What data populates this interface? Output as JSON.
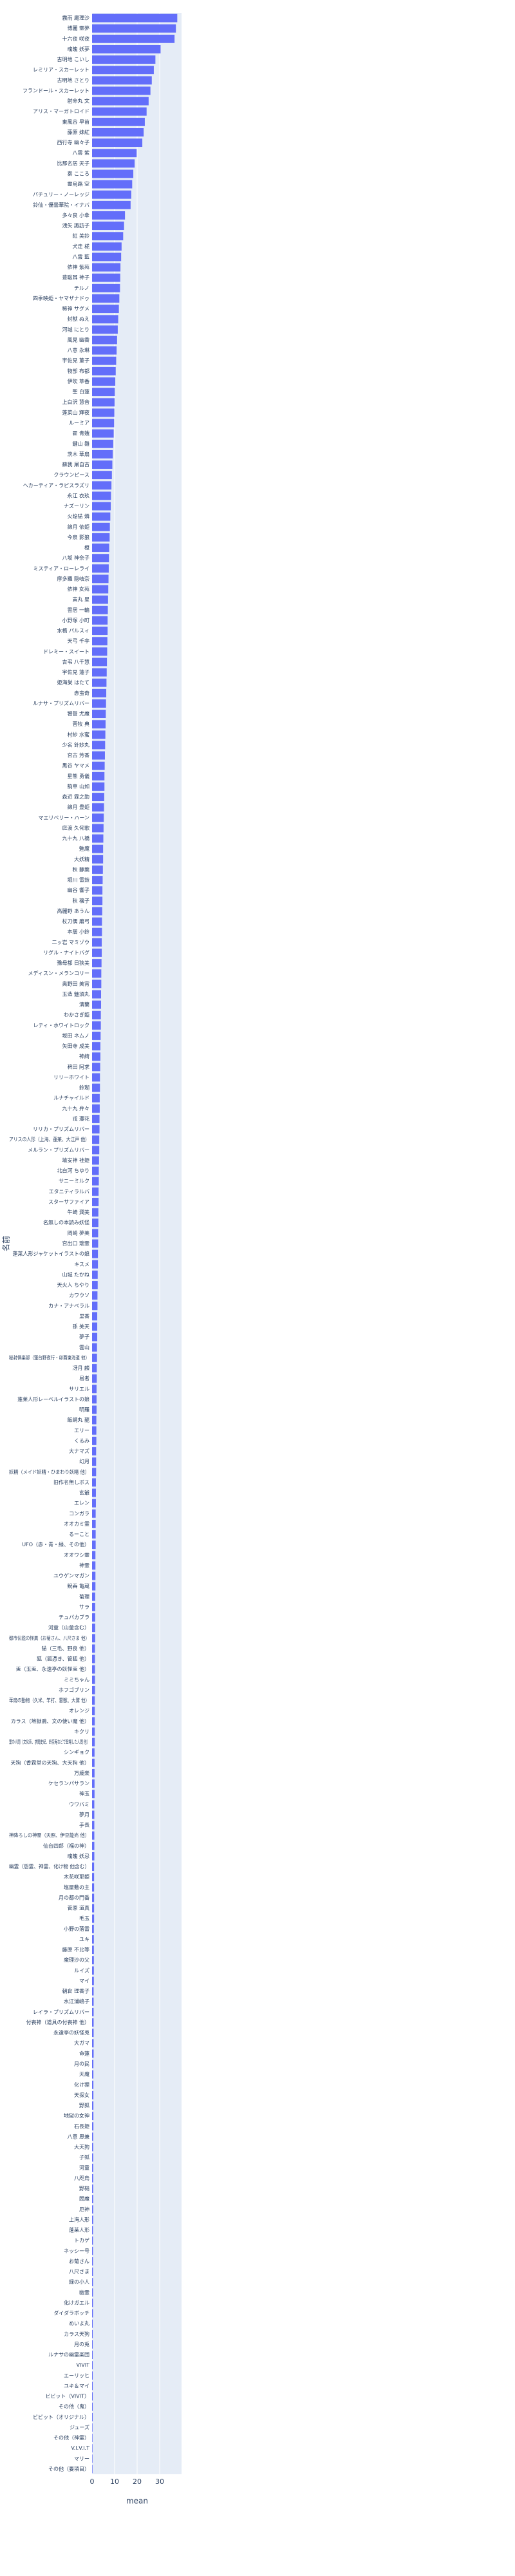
{
  "chart_data": {
    "type": "bar",
    "orientation": "horizontal",
    "x_label": "mean",
    "y_label": "名前",
    "color": "#636efa",
    "grid": true,
    "xlim": [
      0,
      39.7
    ],
    "xticks": [
      0,
      10,
      20,
      30
    ],
    "categories": [
      "霧雨 魔理沙",
      "博麗 霊夢",
      "十六夜 咲夜",
      "魂魄 妖夢",
      "古明地 こいし",
      "レミリア・スカーレット",
      "古明地 さとり",
      "フランドール・スカーレット",
      "射命丸 文",
      "アリス・マーガトロイド",
      "東風谷 早苗",
      "藤原 妹紅",
      "西行寺 幽々子",
      "八雲 紫",
      "比那名居 天子",
      "秦 こころ",
      "霊烏路 空",
      "パチュリー・ノーレッジ",
      "鈴仙・優曇華院・イナバ",
      "多々良 小傘",
      "洩矢 諏訪子",
      "紅 美鈴",
      "犬走 椛",
      "八雲 藍",
      "依神 紫苑",
      "豊聡耳 神子",
      "チルノ",
      "四季映姫・ヤマザナドゥ",
      "稀神 サグメ",
      "封獣 ぬえ",
      "河城 にとり",
      "風見 幽香",
      "八意 永琳",
      "宇佐見 菫子",
      "物部 布都",
      "伊吹 萃香",
      "聖 白蓮",
      "上白沢 慧音",
      "蓬莱山 輝夜",
      "ルーミア",
      "霍 青娥",
      "鍵山 雛",
      "茨木 華扇",
      "蘇我 屠自古",
      "クラウンピース",
      "ヘカーティア・ラピスラズリ",
      "永江 衣玖",
      "ナズーリン",
      "火焔猫 燐",
      "綿月 依姫",
      "今泉 影狼",
      "橙",
      "八坂 神奈子",
      "ミスティア・ローレライ",
      "摩多羅 隠岐奈",
      "依神 女苑",
      "寅丸 星",
      "雲居 一輪",
      "小野塚 小町",
      "水橋 パルスィ",
      "天弓 千亭",
      "ドレミー・スイート",
      "吉弔 八千慧",
      "宇佐見 蓮子",
      "姫海棠 はたて",
      "赤蛮奇",
      "ルナサ・プリズムリバー",
      "饕餮 尤魔",
      "菅牧 典",
      "村紗 水蜜",
      "少名 針妙丸",
      "宮古 芳香",
      "黒谷 ヤマメ",
      "星熊 勇儀",
      "駒草 山如",
      "森近 霖之助",
      "綿月 豊姫",
      "マエリベリー・ハーン",
      "庭渡 久侘歌",
      "九十九 八橋",
      "魅魔",
      "大妖精",
      "秋 静葉",
      "堀川 雷鼓",
      "幽谷 響子",
      "秋 穣子",
      "高麗野 あうん",
      "杖刀偶 磨弓",
      "本居 小鈴",
      "二ッ岩 マミゾウ",
      "リグル・ナイトバグ",
      "豫母都 日狭美",
      "メディスン・メランコリー",
      "奥野田 美宵",
      "玉造 魅須丸",
      "清蘭",
      "わかさぎ姫",
      "レティ・ホワイトロック",
      "坂田 ネムノ",
      "矢田寺 成美",
      "神綺",
      "稗田 阿求",
      "リリーホワイト",
      "鈴瑚",
      "ルナチャイルド",
      "九十九 弁々",
      "戎 瓔花",
      "リリカ・プリズムリバー",
      "アリスの人形（上海、蓬莱、大江戸 他）",
      "メルラン・プリズムリバー",
      "埴安神 袿姫",
      "北白河 ちゆり",
      "サニーミルク",
      "エタニティラルバ",
      "スターサファイア",
      "牛崎 潤美",
      "名無しの本読み妖怪",
      "岡崎 夢美",
      "宮出口 瑞霊",
      "蓬莱人形ジャケットイラストの娘",
      "キスメ",
      "山城 たかね",
      "天火人 ちやり",
      "カワウソ",
      "カナ・アナベラル",
      "里香",
      "孫 美天",
      "夢子",
      "雲山",
      "秘封倶楽部（蓮台野夜行・卯酉東海道 他）",
      "冴月 麟",
      "易者",
      "サリエル",
      "蓬莱人形レーベルイラストの娘",
      "明羅",
      "飯綱丸 龍",
      "エリー",
      "くるみ",
      "大ナマズ",
      "幻月",
      "妖精（メイド妖精・ひまわり妖精 他）",
      "旧作名無しボス",
      "玄爺",
      "エレン",
      "コンガラ",
      "オオカミ霊",
      "るーこと",
      "UFO（赤・青・緑、その他）",
      "オオワシ霊",
      "神霊",
      "ユウゲンマガン",
      "鯢呑 亀蔵",
      "菊理",
      "サラ",
      "チュパカブラ",
      "河童（山童含む）",
      "都市伝説の怪異（お菊さん、八尺さま 他）",
      "猫（三毛、野良 他）",
      "狐（狐憑き、管狐 他）",
      "兎（玉兎、永遠亭の妖怪兎 他）",
      "ミミちゃん",
      "ホフゴブリン",
      "華扇の動物（久米、竿打、雷獣、大鷲 他）",
      "オレンジ",
      "カラス（地獄鴉、文の使い魔 他）",
      "キクリ",
      "里の人間（文化系、求聞史紀、鈴奈庵などで登場した人間 他）",
      "シンギョク",
      "天狗（香霖堂の天狗、大天狗 他）",
      "万歳楽",
      "ケセランパサラン",
      "神玉",
      "ウワバミ",
      "夢月",
      "手長",
      "神降ろしの神霊（天照、伊豆能売 他）",
      "仙台四郎（福の神）",
      "魂魄 妖忌",
      "幽霊（怨霊、神霊、化け物 他含む）",
      "木花咲耶姫",
      "塩屋敷の主",
      "月の都の門番",
      "菅原 道真",
      "毛玉",
      "小野の落雷",
      "ユキ",
      "藤原 不比等",
      "魔理沙の父",
      "ルイズ",
      "マイ",
      "朝倉 理香子",
      "水江浦嶋子",
      "レイラ・プリズムリバー",
      "付喪神（道具の付喪神 他）",
      "永遠亭の妖怪兎",
      "大ガマ",
      "命蓮",
      "月の民",
      "天魔",
      "化け狸",
      "天探女",
      "野狐",
      "地獄の女神",
      "石長姫",
      "八意 思兼",
      "大天狗",
      "子狐",
      "河童",
      "八咫烏",
      "野槌",
      "閻魔",
      "厄神",
      "上海人形",
      "蓬莱人形",
      "トカゲ",
      "ネッシー号",
      "お菊さん",
      "八尺さま",
      "緑の小人",
      "幽霊",
      "化けガエル",
      "ダイダラボッチ",
      "めいよ丸",
      "カラス天狗",
      "月の兎",
      "ルナサの幽霊楽団",
      "VIVIT",
      "エーリッヒ",
      "ユキ＆マイ",
      "ビビット（VIVIT）",
      "その他（鬼）",
      "ビビット（オリジナル）",
      "ジューズ",
      "その他（神霊）",
      "V.I.V.I.T",
      "マリー",
      "その他（要項目）"
    ],
    "values": [
      37.8,
      37.2,
      36.6,
      30.4,
      28.1,
      27.4,
      26.5,
      25.9,
      25.1,
      24.2,
      23.4,
      22.9,
      22.3,
      19.8,
      18.9,
      18.3,
      17.8,
      17.4,
      17.1,
      14.6,
      14.2,
      13.8,
      13.1,
      12.9,
      12.6,
      12.5,
      12.4,
      12.1,
      11.9,
      11.6,
      11.4,
      11.1,
      10.9,
      10.7,
      10.5,
      10.3,
      10.1,
      10.0,
      9.9,
      9.8,
      9.6,
      9.4,
      9.2,
      9.0,
      8.8,
      8.6,
      8.4,
      8.3,
      8.1,
      7.9,
      7.8,
      7.6,
      7.5,
      7.4,
      7.3,
      7.2,
      7.1,
      7.0,
      6.9,
      6.9,
      6.8,
      6.7,
      6.6,
      6.5,
      6.4,
      6.3,
      6.2,
      6.1,
      6.0,
      5.9,
      5.8,
      5.7,
      5.6,
      5.5,
      5.5,
      5.4,
      5.3,
      5.2,
      5.1,
      5.0,
      4.9,
      4.9,
      4.8,
      4.7,
      4.6,
      4.6,
      4.5,
      4.4,
      4.4,
      4.3,
      4.3,
      4.2,
      4.1,
      4.1,
      4.0,
      4.0,
      3.9,
      3.9,
      3.8,
      3.7,
      3.7,
      3.6,
      3.5,
      3.5,
      3.4,
      3.4,
      3.3,
      3.3,
      3.2,
      3.2,
      3.1,
      3.0,
      3.0,
      2.9,
      2.9,
      2.8,
      2.8,
      2.7,
      2.7,
      2.6,
      2.6,
      2.5,
      2.5,
      2.4,
      2.4,
      2.3,
      2.3,
      2.3,
      2.2,
      2.2,
      2.1,
      2.1,
      2.0,
      2.0,
      2.0,
      1.9,
      1.9,
      1.9,
      1.8,
      1.8,
      1.8,
      1.7,
      1.7,
      1.7,
      1.6,
      1.6,
      1.6,
      1.6,
      1.5,
      1.5,
      1.5,
      1.5,
      1.4,
      1.4,
      1.4,
      1.4,
      1.4,
      1.3,
      1.3,
      1.3,
      1.3,
      1.3,
      1.2,
      1.2,
      1.2,
      1.2,
      1.2,
      1.1,
      1.1,
      1.1,
      1.1,
      1.1,
      1.0,
      1.0,
      1.0,
      1.0,
      1.0,
      1.0,
      0.9,
      0.9,
      0.9,
      0.9,
      0.9,
      0.9,
      0.8,
      0.8,
      0.8,
      0.8,
      0.8,
      0.8,
      0.7,
      0.7,
      0.7,
      0.7,
      0.7,
      0.7,
      0.7,
      0.6,
      0.6,
      0.6,
      0.6,
      0.6,
      0.6,
      0.6,
      0.5,
      0.5,
      0.5,
      0.5,
      0.5,
      0.5,
      0.5,
      0.5,
      0.5,
      0.4,
      0.4,
      0.4,
      0.4,
      0.4,
      0.4,
      0.4,
      0.4,
      0.4,
      0.3,
      0.3,
      0.3,
      0.3,
      0.3,
      0.3,
      0.3,
      0.3,
      0.3,
      0.3,
      0.2,
      0.2,
      0.2,
      0.2,
      0.2
    ]
  }
}
